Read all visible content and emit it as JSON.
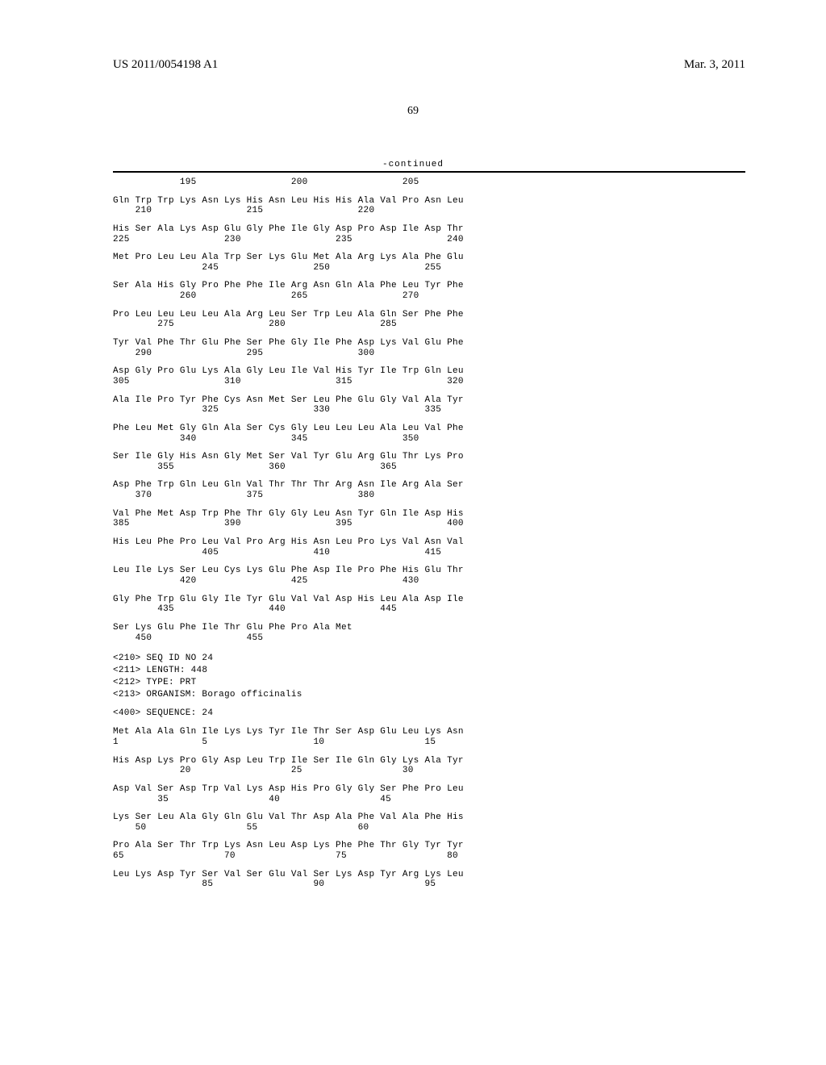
{
  "header": {
    "pub_number": "US 2011/0054198 A1",
    "date": "Mar. 3, 2011"
  },
  "page_number": "69",
  "continued_label": "-continued",
  "seq1": {
    "rows": [
      {
        "aa": "",
        "num": "            195                 200                 205"
      },
      {
        "aa": "Gln Trp Trp Lys Asn Lys His Asn Leu His His Ala Val Pro Asn Leu",
        "num": "    210                 215                 220"
      },
      {
        "aa": "His Ser Ala Lys Asp Glu Gly Phe Ile Gly Asp Pro Asp Ile Asp Thr",
        "num": "225                 230                 235                 240"
      },
      {
        "aa": "Met Pro Leu Leu Ala Trp Ser Lys Glu Met Ala Arg Lys Ala Phe Glu",
        "num": "                245                 250                 255"
      },
      {
        "aa": "Ser Ala His Gly Pro Phe Phe Ile Arg Asn Gln Ala Phe Leu Tyr Phe",
        "num": "            260                 265                 270"
      },
      {
        "aa": "Pro Leu Leu Leu Leu Ala Arg Leu Ser Trp Leu Ala Gln Ser Phe Phe",
        "num": "        275                 280                 285"
      },
      {
        "aa": "Tyr Val Phe Thr Glu Phe Ser Phe Gly Ile Phe Asp Lys Val Glu Phe",
        "num": "    290                 295                 300"
      },
      {
        "aa": "Asp Gly Pro Glu Lys Ala Gly Leu Ile Val His Tyr Ile Trp Gln Leu",
        "num": "305                 310                 315                 320"
      },
      {
        "aa": "Ala Ile Pro Tyr Phe Cys Asn Met Ser Leu Phe Glu Gly Val Ala Tyr",
        "num": "                325                 330                 335"
      },
      {
        "aa": "Phe Leu Met Gly Gln Ala Ser Cys Gly Leu Leu Leu Ala Leu Val Phe",
        "num": "            340                 345                 350"
      },
      {
        "aa": "Ser Ile Gly His Asn Gly Met Ser Val Tyr Glu Arg Glu Thr Lys Pro",
        "num": "        355                 360                 365"
      },
      {
        "aa": "Asp Phe Trp Gln Leu Gln Val Thr Thr Thr Arg Asn Ile Arg Ala Ser",
        "num": "    370                 375                 380"
      },
      {
        "aa": "Val Phe Met Asp Trp Phe Thr Gly Gly Leu Asn Tyr Gln Ile Asp His",
        "num": "385                 390                 395                 400"
      },
      {
        "aa": "His Leu Phe Pro Leu Val Pro Arg His Asn Leu Pro Lys Val Asn Val",
        "num": "                405                 410                 415"
      },
      {
        "aa": "Leu Ile Lys Ser Leu Cys Lys Glu Phe Asp Ile Pro Phe His Glu Thr",
        "num": "            420                 425                 430"
      },
      {
        "aa": "Gly Phe Trp Glu Gly Ile Tyr Glu Val Val Asp His Leu Ala Asp Ile",
        "num": "        435                 440                 445"
      },
      {
        "aa": "Ser Lys Glu Phe Ile Thr Glu Phe Pro Ala Met",
        "num": "    450                 455"
      }
    ]
  },
  "meta": {
    "line1": "<210> SEQ ID NO 24",
    "line2": "<211> LENGTH: 448",
    "line3": "<212> TYPE: PRT",
    "line4": "<213> ORGANISM: Borago officinalis",
    "line5": "<400> SEQUENCE: 24"
  },
  "seq2": {
    "rows": [
      {
        "aa": "Met Ala Ala Gln Ile Lys Lys Tyr Ile Thr Ser Asp Glu Leu Lys Asn",
        "num": "1               5                   10                  15"
      },
      {
        "aa": "His Asp Lys Pro Gly Asp Leu Trp Ile Ser Ile Gln Gly Lys Ala Tyr",
        "num": "            20                  25                  30"
      },
      {
        "aa": "Asp Val Ser Asp Trp Val Lys Asp His Pro Gly Gly Ser Phe Pro Leu",
        "num": "        35                  40                  45"
      },
      {
        "aa": "Lys Ser Leu Ala Gly Gln Glu Val Thr Asp Ala Phe Val Ala Phe His",
        "num": "    50                  55                  60"
      },
      {
        "aa": "Pro Ala Ser Thr Trp Lys Asn Leu Asp Lys Phe Phe Thr Gly Tyr Tyr",
        "num": "65                  70                  75                  80"
      },
      {
        "aa": "Leu Lys Asp Tyr Ser Val Ser Glu Val Ser Lys Asp Tyr Arg Lys Leu",
        "num": "                85                  90                  95"
      }
    ]
  }
}
